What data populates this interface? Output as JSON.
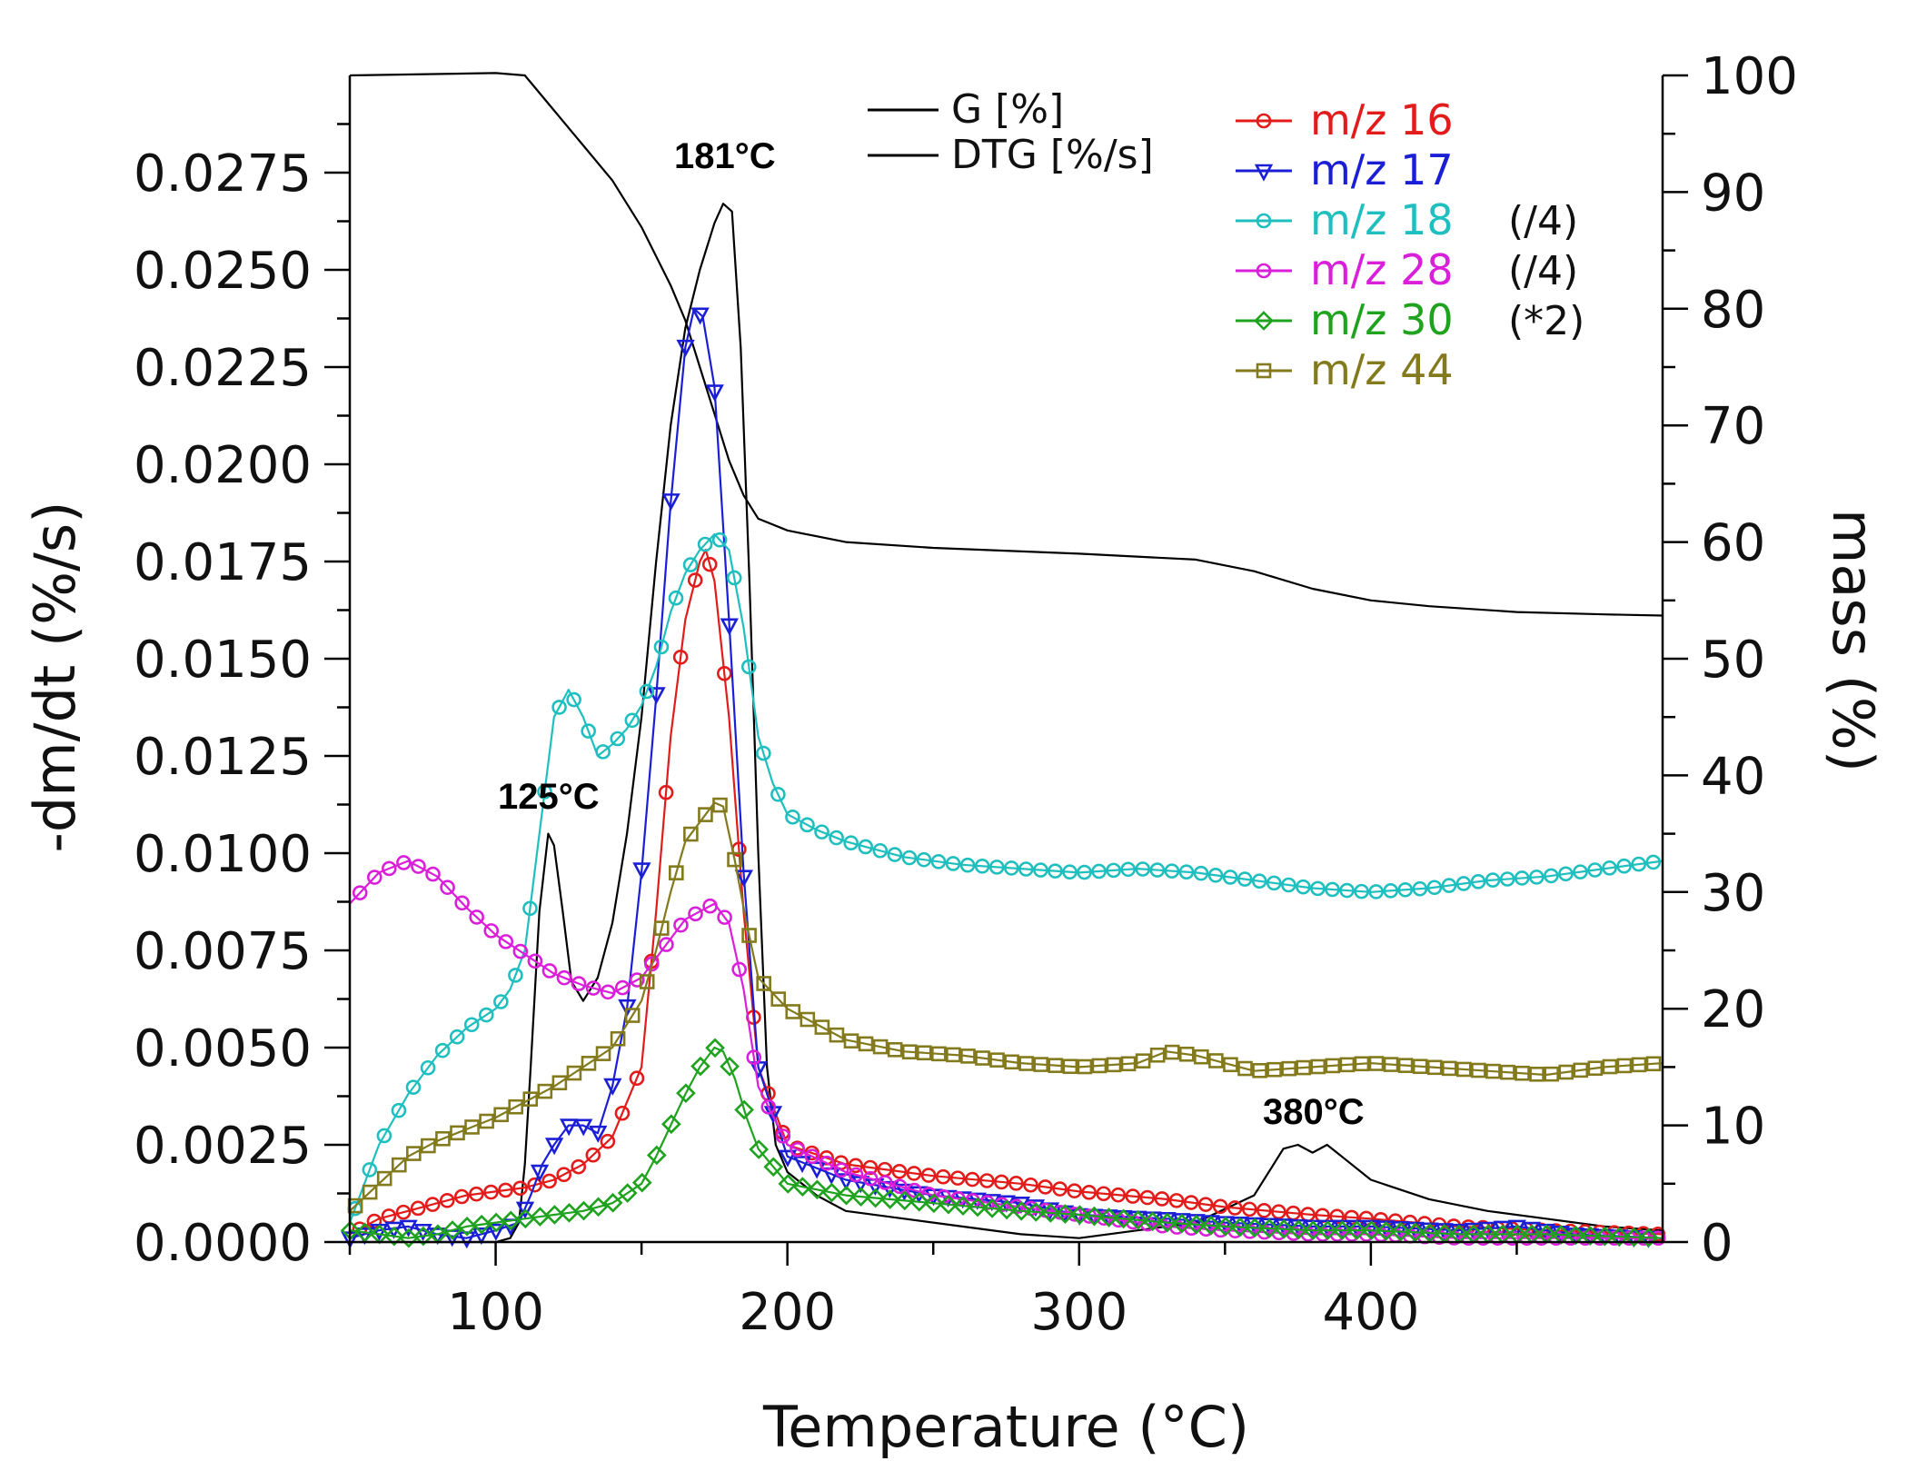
{
  "chart_data": {
    "type": "line",
    "xlabel": "Temperature (°C)",
    "ylabel_left": "-dm/dt (%/s)",
    "ylabel_right": "mass (%)",
    "xlim": [
      50,
      500
    ],
    "ylim_left": [
      0,
      0.03
    ],
    "ylim_right": [
      0,
      100
    ],
    "x_ticks": [
      "100",
      "200",
      "300",
      "400"
    ],
    "left_ticks": [
      "0.0000",
      "0.0025",
      "0.0050",
      "0.0075",
      "0.0100",
      "0.0125",
      "0.0150",
      "0.0175",
      "0.0200",
      "0.0225",
      "0.0250",
      "0.0275"
    ],
    "right_ticks": [
      "0",
      "10",
      "20",
      "30",
      "40",
      "50",
      "60",
      "70",
      "80",
      "90",
      "100"
    ],
    "grid": false,
    "legend_position": "top-right",
    "annotations": [
      {
        "label": "181°C",
        "x": 181
      },
      {
        "label": "125°C",
        "x": 125
      },
      {
        "label": "380°C",
        "x": 380
      }
    ],
    "series": [
      {
        "id": "G",
        "name": "G [%]",
        "axis": "right",
        "color": "#000000",
        "marker": "none",
        "x": [
          50,
          100,
          110,
          120,
          130,
          140,
          150,
          160,
          165,
          170,
          175,
          180,
          185,
          190,
          200,
          220,
          250,
          300,
          340,
          360,
          380,
          400,
          420,
          450,
          480,
          500
        ],
        "y": [
          100,
          100.2,
          100,
          97,
          94,
          91,
          87,
          82,
          79,
          75,
          71,
          67,
          64,
          62,
          61,
          60,
          59.5,
          59,
          58.5,
          57.5,
          56,
          55,
          54.5,
          54,
          53.8,
          53.7
        ]
      },
      {
        "id": "DTG",
        "name": "DTG [%/s]",
        "axis": "left",
        "color": "#000000",
        "marker": "none",
        "x": [
          50,
          100,
          105,
          108,
          110,
          112,
          115,
          118,
          120,
          123,
          126,
          130,
          135,
          140,
          145,
          150,
          155,
          160,
          165,
          170,
          175,
          178,
          181,
          184,
          187,
          190,
          193,
          196,
          200,
          210,
          220,
          240,
          260,
          280,
          300,
          320,
          340,
          360,
          370,
          375,
          380,
          385,
          390,
          400,
          420,
          440,
          460,
          480,
          500
        ],
        "y": [
          0,
          0,
          0.0001,
          0.0005,
          0.002,
          0.0045,
          0.0085,
          0.0105,
          0.0102,
          0.0085,
          0.0067,
          0.0062,
          0.0068,
          0.0082,
          0.0105,
          0.0135,
          0.0175,
          0.021,
          0.0235,
          0.025,
          0.0262,
          0.0267,
          0.0265,
          0.023,
          0.017,
          0.01,
          0.0045,
          0.0025,
          0.0018,
          0.0012,
          0.0008,
          0.0006,
          0.0004,
          0.0002,
          0.0001,
          0.0003,
          0.0005,
          0.0012,
          0.0024,
          0.0025,
          0.0023,
          0.0025,
          0.0022,
          0.0016,
          0.0011,
          0.0008,
          0.0006,
          0.0004,
          0.0003
        ]
      },
      {
        "id": "mz16",
        "name": "m/z 16",
        "axis": "left",
        "color": "#e21b1b",
        "marker": "circle",
        "x": [
          50,
          60,
          70,
          80,
          90,
          100,
          110,
          120,
          130,
          140,
          150,
          155,
          160,
          165,
          170,
          172,
          175,
          180,
          185,
          190,
          200,
          220,
          250,
          280,
          300,
          330,
          350,
          380,
          400,
          430,
          460,
          500
        ],
        "y": [
          0.0002,
          0.0006,
          0.0008,
          0.001,
          0.0012,
          0.0013,
          0.0014,
          0.0016,
          0.002,
          0.0027,
          0.0045,
          0.0085,
          0.013,
          0.016,
          0.0175,
          0.0178,
          0.017,
          0.0135,
          0.0085,
          0.0045,
          0.0025,
          0.002,
          0.0017,
          0.0015,
          0.0013,
          0.0011,
          0.0009,
          0.0007,
          0.0006,
          0.0004,
          0.0003,
          0.0002
        ]
      },
      {
        "id": "mz17",
        "name": "m/z 17",
        "axis": "left",
        "color": "#1a1fd6",
        "marker": "triangle",
        "x": [
          50,
          60,
          70,
          80,
          90,
          100,
          108,
          112,
          116,
          120,
          125,
          130,
          135,
          140,
          145,
          150,
          155,
          160,
          165,
          168,
          171,
          175,
          180,
          185,
          190,
          200,
          220,
          250,
          280,
          300,
          330,
          350,
          380,
          400,
          430,
          450,
          470,
          500
        ],
        "y": [
          0.0001,
          0.0003,
          0.0004,
          0.0002,
          0.0001,
          0.0003,
          0.0005,
          0.0012,
          0.002,
          0.0025,
          0.003,
          0.003,
          0.0028,
          0.004,
          0.006,
          0.0095,
          0.014,
          0.019,
          0.023,
          0.024,
          0.0238,
          0.022,
          0.016,
          0.0095,
          0.0045,
          0.0022,
          0.0016,
          0.0012,
          0.001,
          0.0007,
          0.0006,
          0.0005,
          0.0004,
          0.0004,
          0.0003,
          0.0004,
          0.0002,
          0.0001
        ]
      },
      {
        "id": "mz18",
        "name": "m/z 18",
        "suffix": "(/4)",
        "axis": "left",
        "color": "#1fbfbf",
        "marker": "circle",
        "x": [
          50,
          55,
          60,
          70,
          80,
          90,
          100,
          105,
          110,
          115,
          120,
          125,
          130,
          135,
          140,
          145,
          150,
          155,
          160,
          165,
          170,
          175,
          180,
          185,
          190,
          195,
          200,
          210,
          220,
          240,
          260,
          280,
          300,
          320,
          340,
          360,
          380,
          400,
          420,
          440,
          460,
          480,
          500
        ],
        "y": [
          0.0005,
          0.0015,
          0.0025,
          0.0038,
          0.0048,
          0.0055,
          0.006,
          0.0065,
          0.0075,
          0.0105,
          0.0135,
          0.0142,
          0.0135,
          0.0125,
          0.0128,
          0.0132,
          0.0138,
          0.0148,
          0.0162,
          0.0172,
          0.0178,
          0.0182,
          0.0178,
          0.0158,
          0.013,
          0.0118,
          0.011,
          0.0106,
          0.0103,
          0.0099,
          0.0097,
          0.0096,
          0.0095,
          0.0096,
          0.0095,
          0.0093,
          0.0091,
          0.009,
          0.0091,
          0.0093,
          0.0094,
          0.0096,
          0.0098
        ]
      },
      {
        "id": "mz28",
        "name": "m/z 28",
        "suffix": "(/4)",
        "axis": "left",
        "color": "#d91fd9",
        "marker": "circle",
        "x": [
          50,
          60,
          70,
          80,
          90,
          100,
          110,
          120,
          130,
          140,
          150,
          160,
          165,
          170,
          175,
          180,
          185,
          190,
          200,
          220,
          250,
          280,
          300,
          330,
          350,
          380,
          400,
          430,
          460,
          500
        ],
        "y": [
          0.0087,
          0.0095,
          0.0098,
          0.0094,
          0.0086,
          0.0079,
          0.0074,
          0.0069,
          0.0066,
          0.0064,
          0.0068,
          0.0078,
          0.0083,
          0.0085,
          0.0087,
          0.0082,
          0.0065,
          0.004,
          0.0025,
          0.0018,
          0.0012,
          0.0009,
          0.0007,
          0.0004,
          0.0003,
          0.0002,
          0.0002,
          0.0001,
          0.0001,
          0.0001
        ]
      },
      {
        "id": "mz30",
        "name": "m/z 30",
        "suffix": "(*2)",
        "axis": "left",
        "color": "#1fa31f",
        "marker": "diamond",
        "x": [
          50,
          60,
          70,
          80,
          90,
          100,
          110,
          120,
          130,
          140,
          150,
          155,
          160,
          165,
          170,
          175,
          178,
          182,
          186,
          190,
          200,
          220,
          250,
          280,
          300,
          330,
          350,
          380,
          400,
          430,
          460,
          500
        ],
        "y": [
          0.0003,
          0.0002,
          0.0001,
          0.0002,
          0.0004,
          0.0005,
          0.0006,
          0.0007,
          0.0008,
          0.001,
          0.0015,
          0.0022,
          0.003,
          0.0038,
          0.0045,
          0.005,
          0.0049,
          0.0042,
          0.0032,
          0.0024,
          0.0015,
          0.0012,
          0.001,
          0.0008,
          0.0007,
          0.0005,
          0.0004,
          0.0003,
          0.0003,
          0.0002,
          0.0002,
          0.0001
        ]
      },
      {
        "id": "mz44",
        "name": "m/z 44",
        "axis": "left",
        "color": "#827a1c",
        "marker": "square",
        "x": [
          50,
          60,
          70,
          80,
          90,
          100,
          110,
          120,
          130,
          140,
          150,
          155,
          160,
          165,
          170,
          175,
          178,
          182,
          186,
          190,
          200,
          220,
          240,
          260,
          280,
          300,
          320,
          330,
          340,
          360,
          380,
          400,
          420,
          440,
          460,
          480,
          500
        ],
        "y": [
          0.0008,
          0.0015,
          0.0022,
          0.0026,
          0.0029,
          0.0032,
          0.0036,
          0.004,
          0.0045,
          0.005,
          0.0062,
          0.0075,
          0.009,
          0.0103,
          0.0108,
          0.0113,
          0.0112,
          0.0098,
          0.0082,
          0.0068,
          0.006,
          0.0052,
          0.0049,
          0.0048,
          0.0046,
          0.0045,
          0.0046,
          0.0049,
          0.0048,
          0.0044,
          0.0045,
          0.0046,
          0.0045,
          0.0044,
          0.0043,
          0.0045,
          0.0046
        ]
      }
    ]
  }
}
